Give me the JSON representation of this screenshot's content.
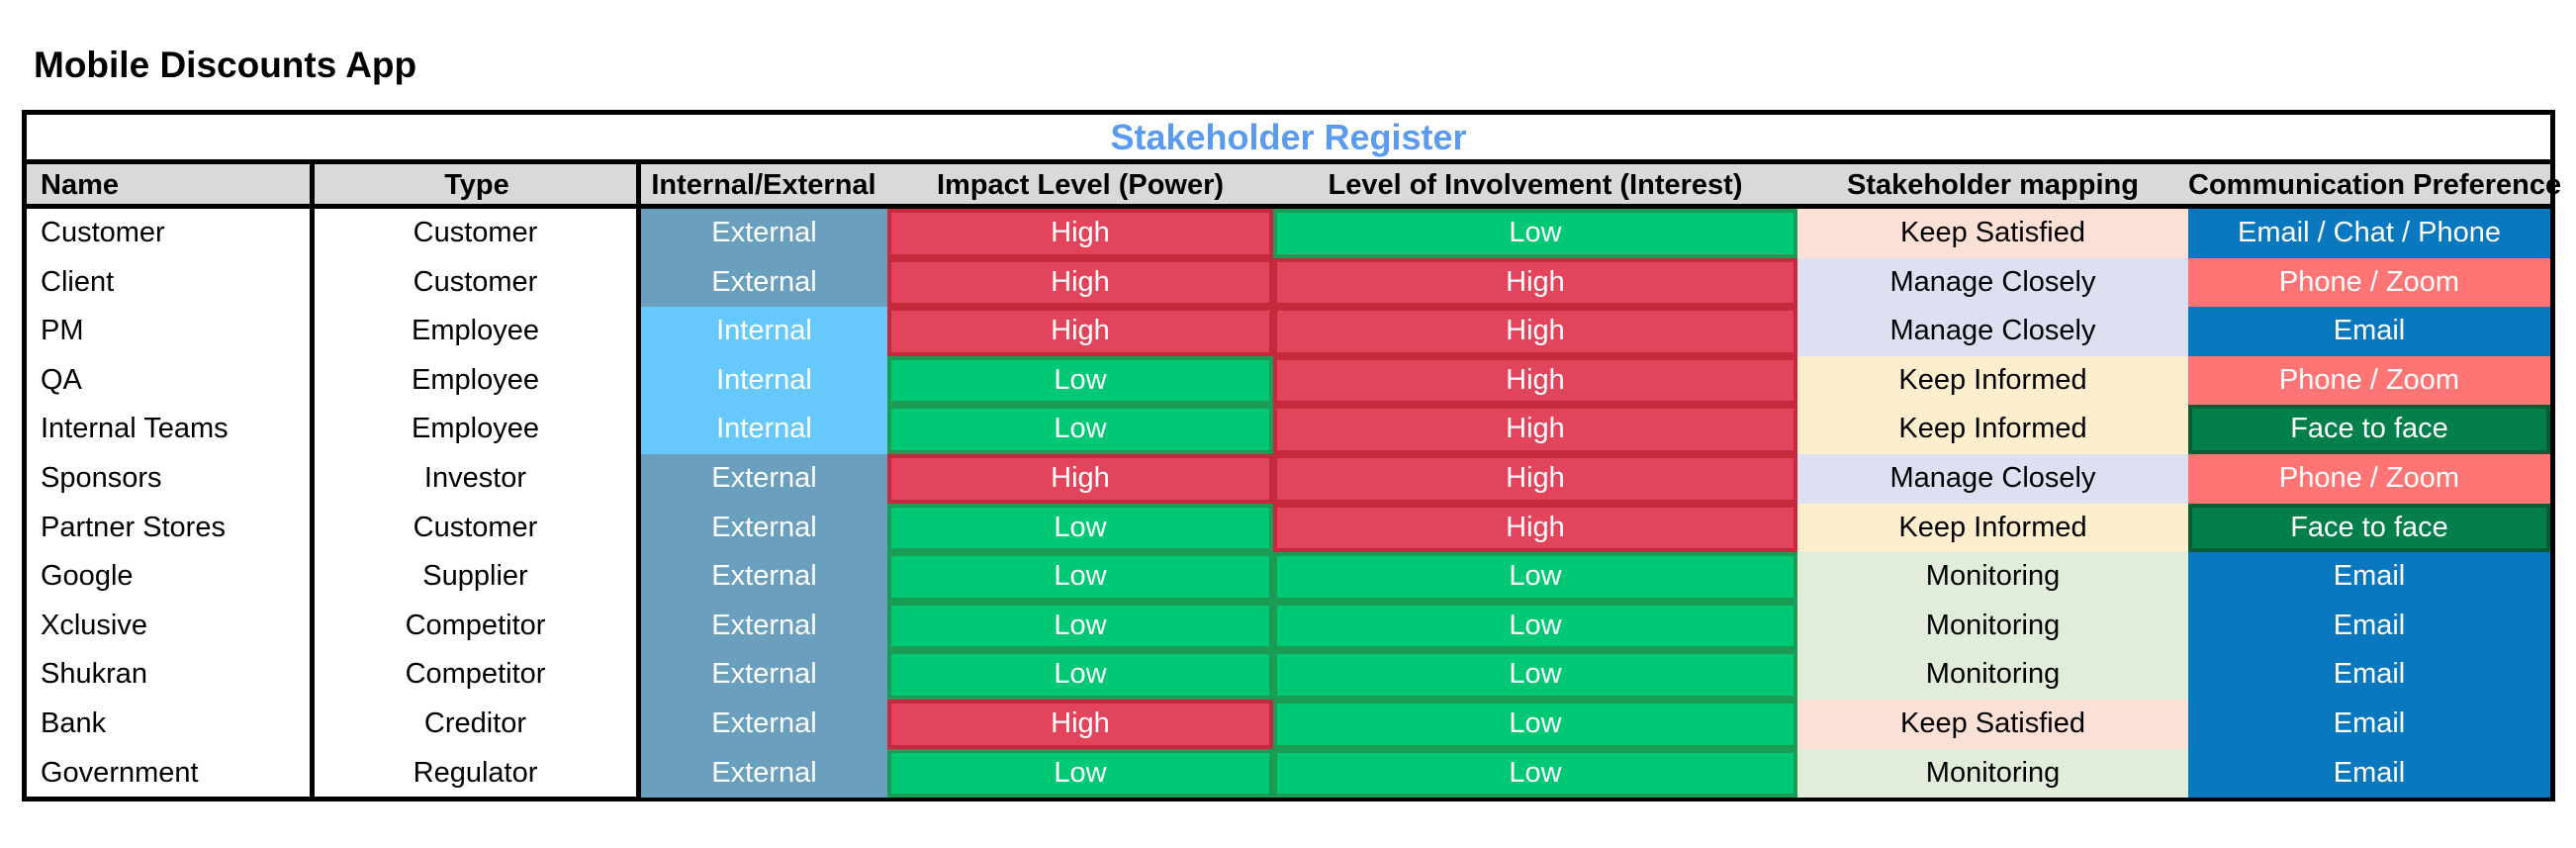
{
  "app_title": "Mobile Discounts App",
  "register_title": "Stakeholder Register",
  "headers": [
    "Name",
    "Type",
    "Internal/External",
    "Impact Level (Power)",
    "Level of Involvement (Interest)",
    "Stakeholder mapping",
    "Communication Preference"
  ],
  "colors": {
    "title_blue": "#5b9bef",
    "header_gray": "#d9d9d9",
    "external": "#6a9fbd",
    "internal": "#66c8fb",
    "high": "#e2445c",
    "low": "#00c875",
    "keep_satisfied": "#fbe0d6",
    "manage_closely": "#dce0f0",
    "keep_informed": "#fdefcd",
    "monitoring": "#e2ecda",
    "email": "#0a78be",
    "phone_zoom": "#ff7575",
    "face_to_face": "#037f4c"
  },
  "rows": [
    {
      "name": "Customer",
      "type": "Customer",
      "ie": "External",
      "impact": "High",
      "interest": "Low",
      "mapping": "Keep Satisfied",
      "comm": "Email / Chat / Phone"
    },
    {
      "name": "Client",
      "type": "Customer",
      "ie": "External",
      "impact": "High",
      "interest": "High",
      "mapping": "Manage Closely",
      "comm": "Phone / Zoom"
    },
    {
      "name": "PM",
      "type": "Employee",
      "ie": "Internal",
      "impact": "High",
      "interest": "High",
      "mapping": "Manage Closely",
      "comm": "Email"
    },
    {
      "name": "QA",
      "type": "Employee",
      "ie": "Internal",
      "impact": "Low",
      "interest": "High",
      "mapping": "Keep Informed",
      "comm": "Phone / Zoom"
    },
    {
      "name": "Internal Teams",
      "type": "Employee",
      "ie": "Internal",
      "impact": "Low",
      "interest": "High",
      "mapping": "Keep Informed",
      "comm": "Face to face"
    },
    {
      "name": "Sponsors",
      "type": "Investor",
      "ie": "External",
      "impact": "High",
      "interest": "High",
      "mapping": "Manage Closely",
      "comm": "Phone / Zoom"
    },
    {
      "name": "Partner Stores",
      "type": "Customer",
      "ie": "External",
      "impact": "Low",
      "interest": "High",
      "mapping": "Keep Informed",
      "comm": "Face to face"
    },
    {
      "name": "Google",
      "type": "Supplier",
      "ie": "External",
      "impact": "Low",
      "interest": "Low",
      "mapping": "Monitoring",
      "comm": "Email"
    },
    {
      "name": "Xclusive",
      "type": "Competitor",
      "ie": "External",
      "impact": "Low",
      "interest": "Low",
      "mapping": "Monitoring",
      "comm": "Email"
    },
    {
      "name": "Shukran",
      "type": "Competitor",
      "ie": "External",
      "impact": "Low",
      "interest": "Low",
      "mapping": "Monitoring",
      "comm": "Email"
    },
    {
      "name": "Bank",
      "type": "Creditor",
      "ie": "External",
      "impact": "High",
      "interest": "Low",
      "mapping": "Keep Satisfied",
      "comm": "Email"
    },
    {
      "name": "Government",
      "type": "Regulator",
      "ie": "External",
      "impact": "Low",
      "interest": "Low",
      "mapping": "Monitoring",
      "comm": "Email"
    }
  ]
}
